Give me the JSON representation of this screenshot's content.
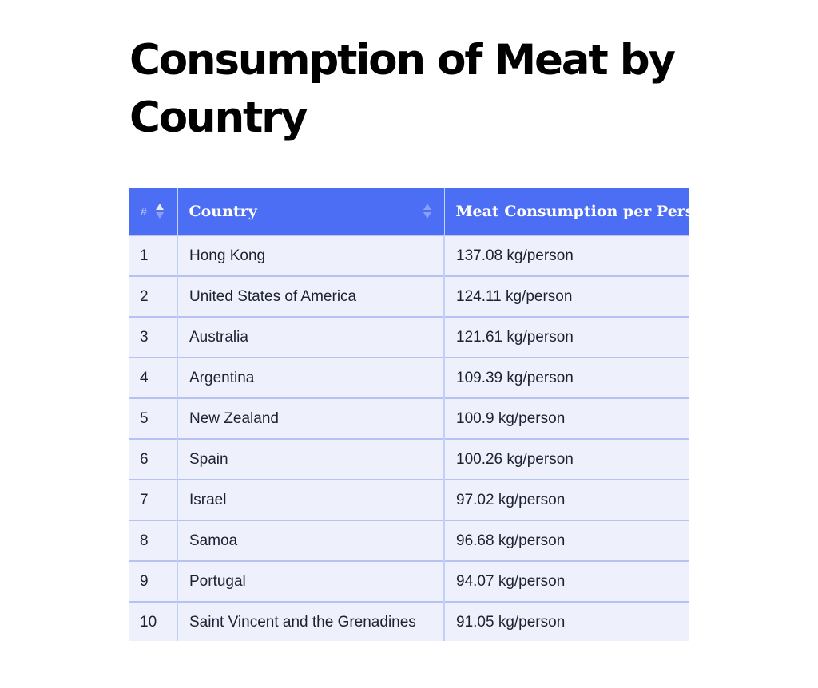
{
  "title": "Consumption of Meat by Country",
  "table": {
    "headers": {
      "rank": "#",
      "country": "Country",
      "meat": "Meat Consumption per Person"
    },
    "rows": [
      {
        "rank": "1",
        "country": "Hong Kong",
        "meat": "137.08 kg/person"
      },
      {
        "rank": "2",
        "country": "United States of America",
        "meat": "124.11 kg/person"
      },
      {
        "rank": "3",
        "country": "Australia",
        "meat": "121.61 kg/person"
      },
      {
        "rank": "4",
        "country": "Argentina",
        "meat": "109.39 kg/person"
      },
      {
        "rank": "5",
        "country": "New Zealand",
        "meat": "100.9 kg/person"
      },
      {
        "rank": "6",
        "country": "Spain",
        "meat": "100.26 kg/person"
      },
      {
        "rank": "7",
        "country": "Israel",
        "meat": "97.02 kg/person"
      },
      {
        "rank": "8",
        "country": "Samoa",
        "meat": "96.68 kg/person"
      },
      {
        "rank": "9",
        "country": "Portugal",
        "meat": "94.07 kg/person"
      },
      {
        "rank": "10",
        "country": "Saint Vincent and the Grenadines",
        "meat": "91.05 kg/person"
      }
    ]
  },
  "colors": {
    "header_bg": "#4c6ef5",
    "row_bg": "#eef1fc",
    "row_border": "#b6c3f2"
  },
  "icons": {
    "rank_sort": "sort-ascending-icon",
    "country_sort": "sort-icon"
  }
}
